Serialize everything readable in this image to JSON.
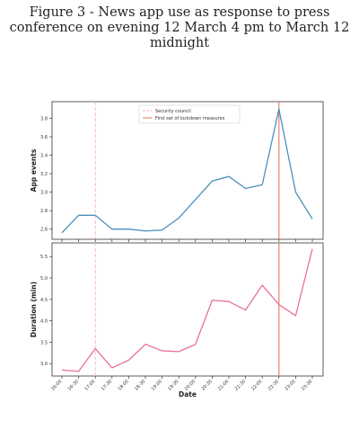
{
  "figure": {
    "title_lines": [
      "Figure 3 - News app use as response to press",
      "conference on evening 12 March 4 pm to March 12",
      "midnight"
    ]
  },
  "chart_data": [
    {
      "type": "line",
      "ylabel": "App events",
      "xlabel": "",
      "x": [
        "16:00",
        "16:30",
        "17:00",
        "17:30",
        "18:00",
        "18:30",
        "19:00",
        "19:30",
        "20:00",
        "20:30",
        "21:00",
        "21:30",
        "22:00",
        "22:30",
        "23:00",
        "23:30"
      ],
      "values": [
        2.56,
        2.75,
        2.75,
        2.6,
        2.6,
        2.58,
        2.59,
        2.72,
        2.92,
        3.12,
        3.17,
        3.04,
        3.08,
        3.9,
        3.0,
        2.71
      ],
      "yticks": [
        "2.6",
        "2.8",
        "3.0",
        "3.2",
        "3.4",
        "3.6",
        "3.8"
      ],
      "ytick_values": [
        2.6,
        2.8,
        3.0,
        3.2,
        3.4,
        3.6,
        3.8
      ],
      "ylim": [
        2.49,
        3.98
      ],
      "color": "#4a8fbd",
      "legend": {
        "placement": "top-center",
        "entries": [
          {
            "label": "Security council",
            "color": "#f4b3b3",
            "style": "dashed"
          },
          {
            "label": "First set of lockdown measures",
            "color": "#e8735a",
            "style": "solid"
          }
        ]
      },
      "vlines": [
        {
          "x": "17:00",
          "color": "#f4b3b3",
          "style": "dashed"
        },
        {
          "x": "22:30",
          "color": "#e8735a",
          "style": "solid"
        }
      ]
    },
    {
      "type": "line",
      "ylabel": "Duration (min)",
      "xlabel": "Date",
      "x": [
        "16:00",
        "16:30",
        "17:00",
        "17:30",
        "18:00",
        "18:30",
        "19:00",
        "19:30",
        "20:00",
        "20:30",
        "21:00",
        "21:30",
        "22:00",
        "22:30",
        "23:00",
        "23:30"
      ],
      "values": [
        2.85,
        2.82,
        3.35,
        2.9,
        3.08,
        3.45,
        3.3,
        3.28,
        3.45,
        4.48,
        4.45,
        4.25,
        4.83,
        4.38,
        4.12,
        5.68
      ],
      "yticks": [
        "3.0",
        "3.5",
        "4.0",
        "4.5",
        "5.0",
        "5.5"
      ],
      "ytick_values": [
        3.0,
        3.5,
        4.0,
        4.5,
        5.0,
        5.5
      ],
      "ylim": [
        2.71,
        5.82
      ],
      "color": "#e9709f",
      "vlines": [
        {
          "x": "17:00",
          "color": "#f4b3b3",
          "style": "dashed"
        },
        {
          "x": "22:30",
          "color": "#e8735a",
          "style": "solid"
        }
      ]
    }
  ]
}
